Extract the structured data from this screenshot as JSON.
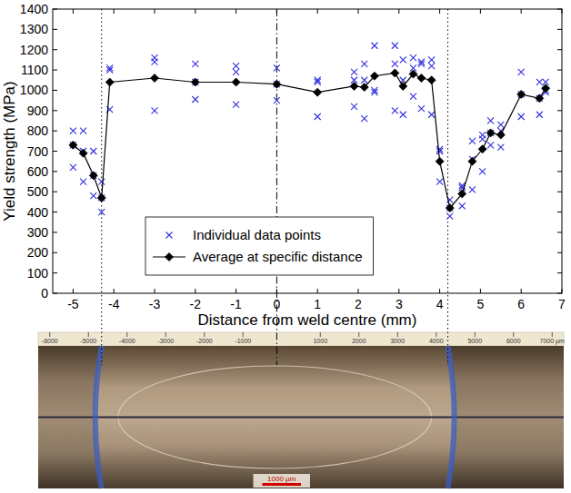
{
  "chart_data": {
    "type": "scatter",
    "x_label": "Distance from weld centre (mm)",
    "y_label": "Yield strength (MPa)",
    "xlim": [
      -5.5,
      7
    ],
    "xticks": [
      -5,
      -4,
      -3,
      -2,
      -1,
      0,
      1,
      2,
      3,
      4,
      5,
      6,
      7
    ],
    "ylim": [
      0,
      1400
    ],
    "yticks": [
      0,
      100,
      200,
      300,
      400,
      500,
      600,
      700,
      800,
      900,
      1000,
      1100,
      1200,
      1300,
      1400
    ],
    "grid": false,
    "legend": "lower left",
    "series": [
      {
        "name": "Individual data points",
        "type": "scatter",
        "marker": "x",
        "color": "#3030e0",
        "x": [
          -5,
          -5,
          -5,
          -4.75,
          -4.75,
          -4.75,
          -4.5,
          -4.5,
          -4.5,
          -4.3,
          -4.3,
          -4.3,
          -4.1,
          -4.1,
          -4.1,
          -3,
          -3,
          -3,
          -2,
          -2,
          -2,
          -1,
          -1,
          -1,
          0,
          0,
          0,
          1,
          1,
          1,
          1.9,
          1.9,
          1.9,
          2.15,
          2.15,
          2.15,
          2.4,
          2.4,
          2.4,
          2.9,
          2.9,
          2.9,
          3.1,
          3.1,
          3.1,
          3.35,
          3.35,
          3.35,
          3.55,
          3.55,
          3.55,
          3.8,
          3.8,
          3.8,
          4.0,
          4.0,
          4.0,
          4.25,
          4.25,
          4.25,
          4.55,
          4.55,
          4.55,
          4.8,
          4.8,
          4.8,
          5.05,
          5.05,
          5.05,
          5.25,
          5.25,
          5.25,
          5.5,
          5.5,
          5.5,
          6.0,
          6.0,
          6.0,
          6.45,
          6.45,
          6.45,
          6.6,
          6.6,
          6.6
        ],
        "values": [
          800,
          620,
          730,
          800,
          550,
          700,
          700,
          480,
          580,
          550,
          400,
          470,
          1110,
          1100,
          905,
          1160,
          1140,
          900,
          1130,
          955,
          1040,
          1120,
          1090,
          930,
          1110,
          950,
          1030,
          1050,
          1040,
          870,
          1090,
          1050,
          920,
          1130,
          860,
          1050,
          1220,
          1000,
          990,
          1220,
          1130,
          900,
          1150,
          1050,
          880,
          1160,
          1110,
          970,
          1140,
          1130,
          910,
          1150,
          1120,
          880,
          710,
          700,
          550,
          420,
          380,
          460,
          530,
          520,
          430,
          750,
          660,
          510,
          780,
          760,
          600,
          850,
          790,
          730,
          830,
          800,
          720,
          1090,
          980,
          870,
          1040,
          960,
          880,
          1040,
          1000,
          990
        ]
      },
      {
        "name": "Average at specific distance",
        "type": "line",
        "marker": "diamond",
        "line_style": "solid",
        "color": "#000000",
        "x": [
          -5,
          -4.75,
          -4.5,
          -4.3,
          -4.1,
          -3,
          -2,
          -1,
          0,
          1,
          1.9,
          2.15,
          2.4,
          2.9,
          3.1,
          3.35,
          3.55,
          3.8,
          4.0,
          4.25,
          4.55,
          4.8,
          5.05,
          5.25,
          5.5,
          6.0,
          6.45,
          6.6
        ],
        "values": [
          730,
          690,
          580,
          470,
          1040,
          1060,
          1040,
          1040,
          1030,
          990,
          1020,
          1015,
          1070,
          1085,
          1020,
          1080,
          1060,
          1050,
          650,
          420,
          490,
          650,
          710,
          790,
          780,
          980,
          960,
          1010
        ]
      }
    ],
    "vertical_lines": [
      {
        "value": -4.3,
        "line_style": "dotted"
      },
      {
        "value": 0,
        "line_style": "dashdot"
      },
      {
        "value": 4.2,
        "line_style": "dotted"
      }
    ],
    "micrograph": {
      "ruler_lim": [
        -6300,
        7300
      ],
      "ruler_ticks": [
        -6000,
        -5000,
        -4000,
        -3000,
        -2000,
        -1000,
        1000,
        2000,
        3000,
        4000,
        5000,
        6000,
        {
          "value": 7000,
          "label": "7000 µm"
        }
      ],
      "scale_bar": {
        "value": 1000,
        "label": "1000 µm"
      }
    }
  }
}
